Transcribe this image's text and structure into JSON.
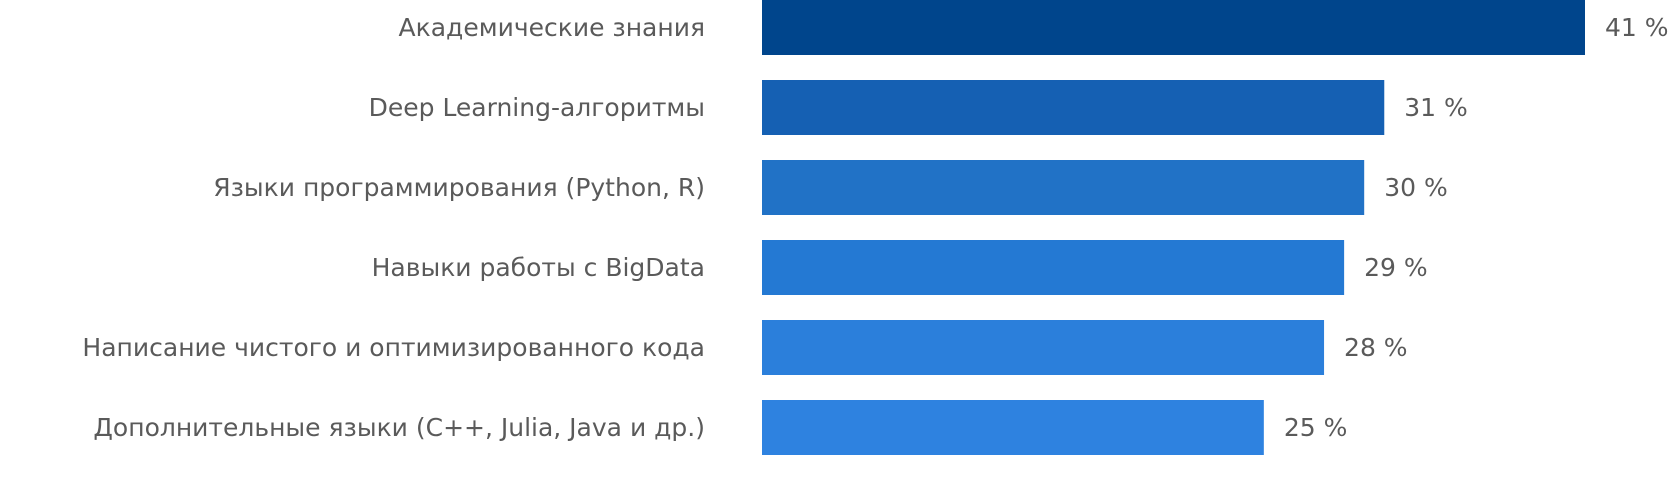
{
  "chart_data": {
    "type": "bar",
    "orientation": "horizontal",
    "categories": [
      "Академические знания",
      "Deep Learning-алгоритмы",
      "Языки программирования (Python, R)",
      "Навыки работы с BigData",
      "Написание чистого и оптимизированного кода",
      "Дополнительные языки (C++, Julia, Java и др.)"
    ],
    "values": [
      41,
      31,
      30,
      29,
      28,
      25
    ],
    "value_labels": [
      "41 %",
      "31 %",
      "30 %",
      "29 %",
      "28 %",
      "25 %"
    ],
    "xlim": [
      0,
      41
    ],
    "grid": false,
    "legend": "none",
    "bar_colors": [
      "#00458c",
      "#1560b3",
      "#2172c6",
      "#2479d3",
      "#2b7fdb",
      "#2e82e0"
    ]
  }
}
